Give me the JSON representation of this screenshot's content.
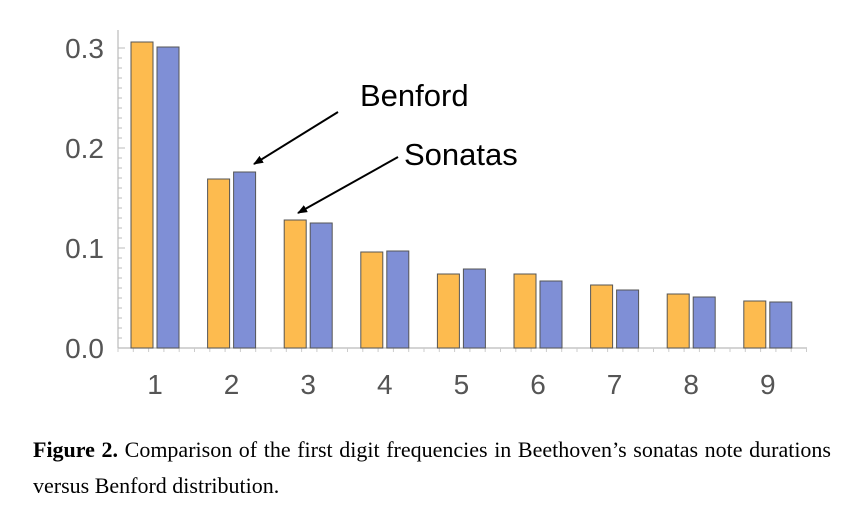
{
  "chart_data": {
    "type": "bar",
    "categories": [
      "1",
      "2",
      "3",
      "4",
      "5",
      "6",
      "7",
      "8",
      "9"
    ],
    "series": [
      {
        "name": "Sonatas",
        "values": [
          0.306,
          0.169,
          0.128,
          0.096,
          0.074,
          0.074,
          0.063,
          0.054,
          0.047
        ],
        "color": "#FDBB4F"
      },
      {
        "name": "Benford",
        "values": [
          0.301,
          0.176,
          0.125,
          0.097,
          0.079,
          0.067,
          0.058,
          0.051,
          0.046
        ],
        "color": "#7F8FD6"
      }
    ],
    "yticks": [
      "0.0",
      "0.1",
      "0.2",
      "0.3"
    ],
    "ylim": [
      0,
      0.33
    ],
    "annotations": [
      {
        "text": "Benford",
        "points_to": "Benford bar at category 2"
      },
      {
        "text": "Sonatas",
        "points_to": "Sonatas bar at category 3"
      }
    ]
  },
  "caption": {
    "label": "Figure 2.",
    "text": "Comparison of the first digit frequencies in Beethoven’s sonatas note durations versus Benford distribution."
  }
}
